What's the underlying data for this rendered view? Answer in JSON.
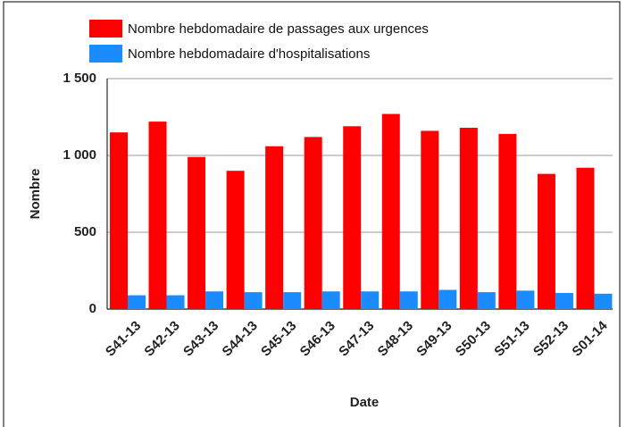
{
  "chart_data": {
    "type": "bar",
    "categories": [
      "S41-13",
      "S42-13",
      "S43-13",
      "S44-13",
      "S45-13",
      "S46-13",
      "S47-13",
      "S48-13",
      "S49-13",
      "S50-13",
      "S51-13",
      "S52-13",
      "S01-14"
    ],
    "series": [
      {
        "name": "Nombre hebdomadaire de passages aux urgences",
        "color": "#ff0000",
        "values": [
          1150,
          1220,
          990,
          900,
          1060,
          1120,
          1190,
          1270,
          1160,
          1180,
          1140,
          880,
          920
        ]
      },
      {
        "name": "Nombre hebdomadaire d'hospitalisations",
        "color": "#1a8cff",
        "values": [
          90,
          90,
          115,
          110,
          110,
          115,
          115,
          115,
          125,
          110,
          120,
          105,
          100
        ]
      }
    ],
    "ylim": [
      0,
      1500
    ],
    "yticks": [
      0,
      500,
      {
        "value": 1000,
        "label": "1 000"
      },
      {
        "value": 1500,
        "label": "1 500"
      }
    ],
    "grid": true,
    "y_label": "Nombre",
    "x_label": "Date"
  }
}
